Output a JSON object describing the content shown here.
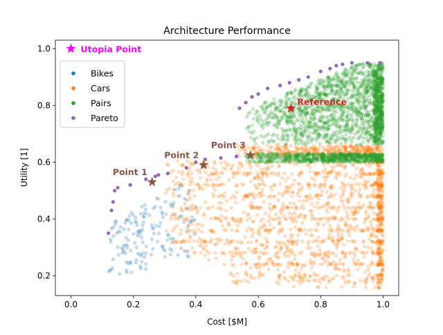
{
  "chart_data": {
    "type": "scatter",
    "title": "Architecture Performance",
    "xlabel": "Cost [$M]",
    "ylabel": "Utility [1]",
    "xlim": [
      -0.05,
      1.05
    ],
    "ylim": [
      0.13,
      1.03
    ],
    "xticks": [
      0.0,
      0.2,
      0.4,
      0.6,
      0.8,
      1.0
    ],
    "yticks": [
      0.2,
      0.4,
      0.6,
      0.8,
      1.0
    ],
    "xtick_labels": [
      "0.0",
      "0.2",
      "0.4",
      "0.6",
      "0.8",
      "1.0"
    ],
    "ytick_labels": [
      "0.2",
      "0.4",
      "0.6",
      "0.8",
      "1.0"
    ],
    "grid": false,
    "legend_position": "upper-left",
    "series": [
      {
        "name": "Bikes",
        "color": "#1f77b4",
        "alpha": 0.25,
        "regions": [
          {
            "x": [
              0.12,
              0.4
            ],
            "y": [
              0.2,
              0.55
            ],
            "count": 160,
            "note_trend": "upper bound rises with cost"
          }
        ]
      },
      {
        "name": "Cars",
        "color": "#ff7f0e",
        "alpha": 0.25,
        "regions": [
          {
            "x": [
              0.3,
              1.0
            ],
            "y": [
              0.17,
              0.6
            ],
            "count": 1600
          },
          {
            "x": [
              0.5,
              1.0
            ],
            "y": [
              0.62,
              0.66
            ],
            "count": 350
          }
        ]
      },
      {
        "name": "Pairs",
        "color": "#2ca02c",
        "alpha": 0.25,
        "regions": [
          {
            "x": [
              0.55,
              1.0
            ],
            "y": [
              0.6,
              0.63
            ],
            "count": 700
          },
          {
            "x": [
              0.55,
              1.0
            ],
            "y": [
              0.66,
              0.95
            ],
            "count": 1700
          }
        ]
      },
      {
        "name": "Pareto",
        "color": "#9467bd",
        "alpha": 1.0,
        "points": [
          [
            0.12,
            0.35
          ],
          [
            0.13,
            0.43
          ],
          [
            0.135,
            0.46
          ],
          [
            0.14,
            0.5
          ],
          [
            0.15,
            0.51
          ],
          [
            0.19,
            0.52
          ],
          [
            0.24,
            0.54
          ],
          [
            0.27,
            0.55
          ],
          [
            0.28,
            0.555
          ],
          [
            0.31,
            0.56
          ],
          [
            0.37,
            0.58
          ],
          [
            0.4,
            0.6
          ],
          [
            0.43,
            0.61
          ],
          [
            0.48,
            0.615
          ],
          [
            0.53,
            0.62
          ],
          [
            0.54,
            0.79
          ],
          [
            0.56,
            0.81
          ],
          [
            0.58,
            0.83
          ],
          [
            0.6,
            0.84
          ],
          [
            0.63,
            0.86
          ],
          [
            0.67,
            0.87
          ],
          [
            0.7,
            0.88
          ],
          [
            0.73,
            0.89
          ],
          [
            0.76,
            0.9
          ],
          [
            0.8,
            0.92
          ],
          [
            0.83,
            0.93
          ],
          [
            0.85,
            0.94
          ],
          [
            0.87,
            0.945
          ],
          [
            0.9,
            0.95
          ],
          [
            0.95,
            0.95
          ],
          [
            0.99,
            0.95
          ]
        ]
      }
    ],
    "annotations": [
      {
        "label": "Utopia Point",
        "x": 0.0,
        "y": 1.0,
        "marker": "star",
        "color": "#ff00ff"
      },
      {
        "label": "Point 1",
        "x": 0.26,
        "y": 0.53,
        "marker": "star",
        "color": "#8c564b"
      },
      {
        "label": "Point 2",
        "x": 0.425,
        "y": 0.59,
        "marker": "star",
        "color": "#8c564b"
      },
      {
        "label": "Point 3",
        "x": 0.575,
        "y": 0.625,
        "marker": "star",
        "color": "#8c564b"
      },
      {
        "label": "Reference",
        "x": 0.705,
        "y": 0.79,
        "marker": "star",
        "color": "#d62728"
      }
    ]
  }
}
